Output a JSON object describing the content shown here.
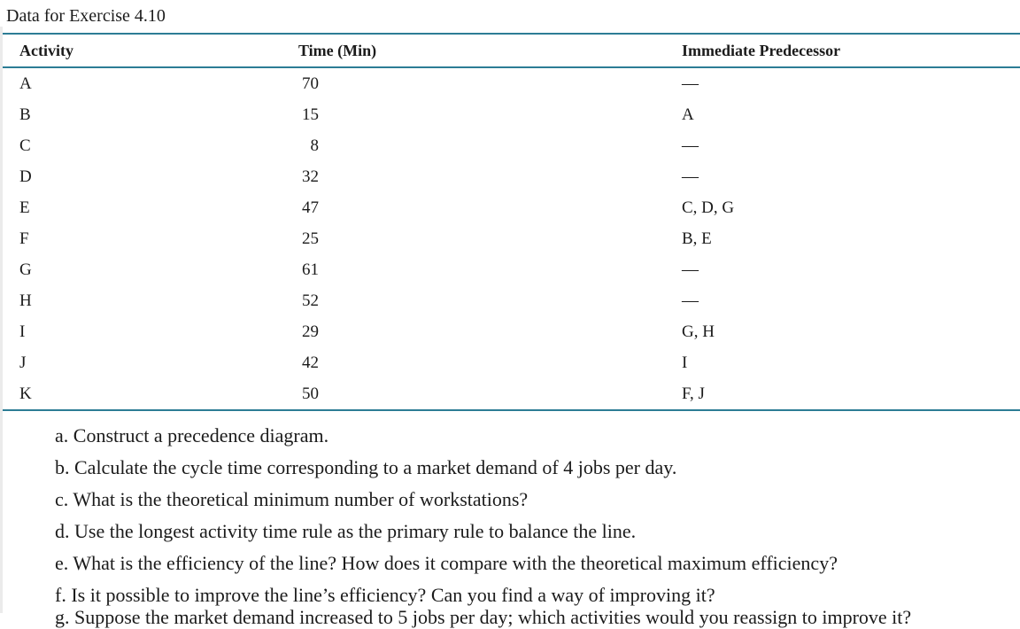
{
  "title": "Data for Exercise 4.10",
  "colors": {
    "rule": "#2c7d95",
    "text": "#1b1b1b",
    "background": "#ffffff"
  },
  "table": {
    "columns": [
      "Activity",
      "Time (Min)",
      "Immediate Predecessor"
    ],
    "rows": [
      {
        "activity": "A",
        "time": "70",
        "pred": "—"
      },
      {
        "activity": "B",
        "time": "15",
        "pred": "A"
      },
      {
        "activity": "C",
        "time": "8",
        "pred": "—"
      },
      {
        "activity": "D",
        "time": "32",
        "pred": "—"
      },
      {
        "activity": "E",
        "time": "47",
        "pred": "C, D, G"
      },
      {
        "activity": "F",
        "time": "25",
        "pred": "B, E"
      },
      {
        "activity": "G",
        "time": "61",
        "pred": "—"
      },
      {
        "activity": "H",
        "time": "52",
        "pred": "—"
      },
      {
        "activity": "I",
        "time": "29",
        "pred": "G, H"
      },
      {
        "activity": "J",
        "time": "42",
        "pred": "I"
      },
      {
        "activity": "K",
        "time": "50",
        "pred": "F, J"
      }
    ]
  },
  "questions": [
    "a. Construct a precedence diagram.",
    "b. Calculate the cycle time corresponding to a market demand of 4 jobs per day.",
    "c. What is the theoretical minimum number of workstations?",
    "d. Use the longest activity time rule as the primary rule to balance the line.",
    "e. What is the efficiency of the line? How does it compare with the theoretical maximum efficiency?",
    "f. Is it possible to improve the line’s efficiency? Can you find a way of improving it?"
  ],
  "cutoff_line_partially_visible": "g. Suppose the market demand increased to 5 jobs per day; which activities would you reassign to improve it?"
}
